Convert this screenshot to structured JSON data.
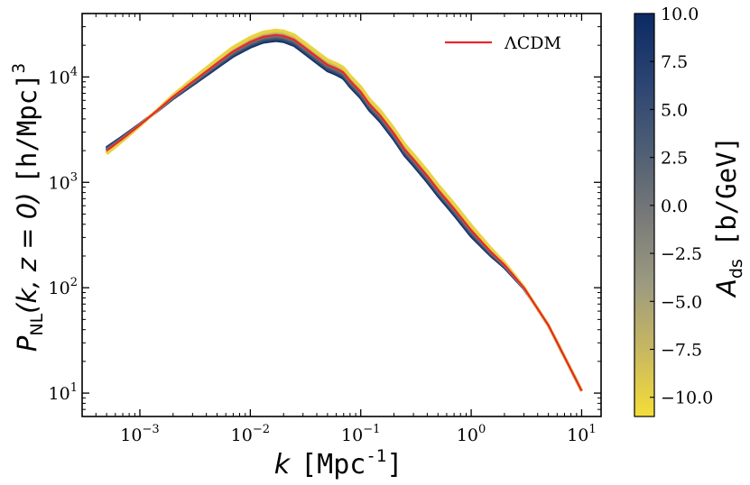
{
  "chart_data": {
    "type": "line",
    "title": "",
    "xscale": "log",
    "yscale": "log",
    "xlim": [
      0.0003,
      15
    ],
    "ylim": [
      6,
      40000
    ],
    "xlabel": {
      "var": "k",
      "unit": "[Mpc",
      "unit_exp": "-1",
      "unit_close": "]"
    },
    "ylabel": {
      "var": "P",
      "sub": "NL",
      "args": "(k, z = 0)",
      "unit": "[h/Mpc]",
      "unit_exp": "3"
    },
    "x_ticks": [
      {
        "base": "10",
        "exp": "−3",
        "value": 0.001
      },
      {
        "base": "10",
        "exp": "−2",
        "value": 0.01
      },
      {
        "base": "10",
        "exp": "−1",
        "value": 0.1
      },
      {
        "base": "10",
        "exp": "0",
        "value": 1
      },
      {
        "base": "10",
        "exp": "1",
        "value": 10
      }
    ],
    "y_ticks": [
      {
        "base": "10",
        "exp": "1",
        "value": 10
      },
      {
        "base": "10",
        "exp": "2",
        "value": 100
      },
      {
        "base": "10",
        "exp": "3",
        "value": 1000
      },
      {
        "base": "10",
        "exp": "4",
        "value": 10000
      }
    ],
    "legend": {
      "position": "top-right",
      "entries": [
        {
          "label": "ΛCDM",
          "color": "#e8262b"
        }
      ]
    },
    "reference_series": {
      "name": "ΛCDM",
      "color": "#e8262b",
      "points": [
        [
          0.0005,
          2000
        ],
        [
          0.0007,
          2600
        ],
        [
          0.001,
          3500
        ],
        [
          0.0015,
          5000
        ],
        [
          0.002,
          6500
        ],
        [
          0.003,
          9000
        ],
        [
          0.005,
          13500
        ],
        [
          0.007,
          17500
        ],
        [
          0.01,
          21500
        ],
        [
          0.013,
          24000
        ],
        [
          0.017,
          25000
        ],
        [
          0.02,
          24500
        ],
        [
          0.025,
          22500
        ],
        [
          0.03,
          19500
        ],
        [
          0.04,
          15500
        ],
        [
          0.05,
          13000
        ],
        [
          0.06,
          12000
        ],
        [
          0.07,
          11000
        ],
        [
          0.08,
          9200
        ],
        [
          0.1,
          7200
        ],
        [
          0.12,
          5500
        ],
        [
          0.15,
          4300
        ],
        [
          0.2,
          2900
        ],
        [
          0.25,
          2050
        ],
        [
          0.3,
          1650
        ],
        [
          0.4,
          1150
        ],
        [
          0.5,
          850
        ],
        [
          0.7,
          560
        ],
        [
          1.0,
          350
        ],
        [
          1.5,
          220
        ],
        [
          2.0,
          165
        ],
        [
          3.0,
          100
        ],
        [
          5.0,
          44
        ],
        [
          7.0,
          22
        ],
        [
          10.0,
          10.5
        ]
      ]
    },
    "parameter_family": {
      "parameter": "A_ds",
      "values": [
        -10,
        -7.5,
        -5,
        -2.5,
        0,
        2.5,
        5,
        7.5,
        10
      ],
      "amplitude_at_extremes": 0.12,
      "note": "Negative A_ds raises P_NL at intermediate k; positive lowers it; curves converge at high k"
    },
    "colorbar": {
      "label_var": "A",
      "label_sub": "ds",
      "label_unit": "[b/GeV]",
      "min": -11,
      "max": 10,
      "ticks": [
        "10.0",
        "7.5",
        "5.0",
        "2.5",
        "0.0",
        "−2.5",
        "−5.0",
        "−7.5",
        "−10.0"
      ],
      "tick_values": [
        10,
        7.5,
        5,
        2.5,
        0,
        -2.5,
        -5,
        -7.5,
        -10
      ],
      "colormap": [
        "#f5de38",
        "#c9b860",
        "#9c9a80",
        "#777978",
        "#4e5e74",
        "#2b4472",
        "#0b2a63"
      ]
    }
  }
}
